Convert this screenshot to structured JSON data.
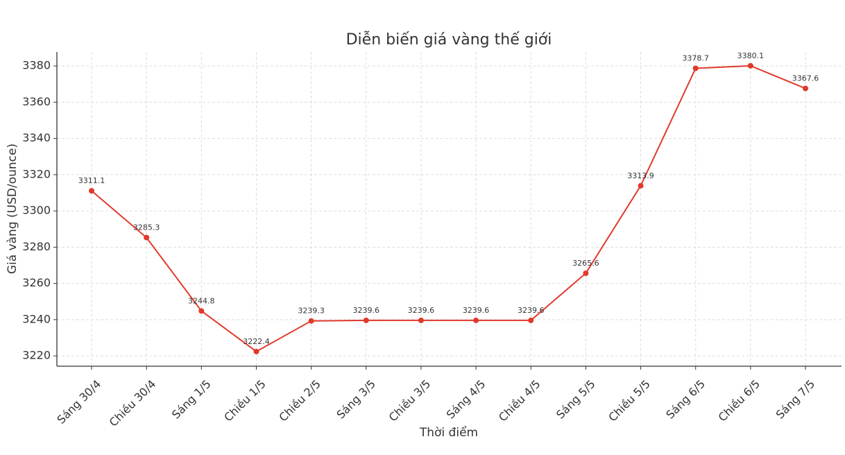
{
  "chart_data": {
    "type": "line",
    "title": "Diễn biến giá vàng thế giới",
    "x_label": "Thời điểm",
    "y_label": "Giá vàng (USD/ounce)",
    "categories": [
      "Sáng 30/4",
      "Chiều 30/4",
      "Sáng 1/5",
      "Chiều 1/5",
      "Chiều 2/5",
      "Sáng 3/5",
      "Chiều 3/5",
      "Sáng 4/5",
      "Chiều 4/5",
      "Sáng 5/5",
      "Chiều 5/5",
      "Sáng 6/5",
      "Chiều 6/5",
      "Sáng 7/5"
    ],
    "series": [
      {
        "name": "Giá vàng",
        "color": "#e0392b",
        "values": [
          3311.1,
          3285.3,
          3244.8,
          3222.4,
          3239.3,
          3239.6,
          3239.6,
          3239.6,
          3239.6,
          3265.6,
          3313.9,
          3378.7,
          3380.1,
          3367.6
        ]
      }
    ],
    "ylim": [
      3214.3,
      3387.7
    ],
    "yticks": [
      3220,
      3240,
      3260,
      3280,
      3300,
      3320,
      3340,
      3360,
      3380
    ],
    "grid": true,
    "data_labels": true
  }
}
